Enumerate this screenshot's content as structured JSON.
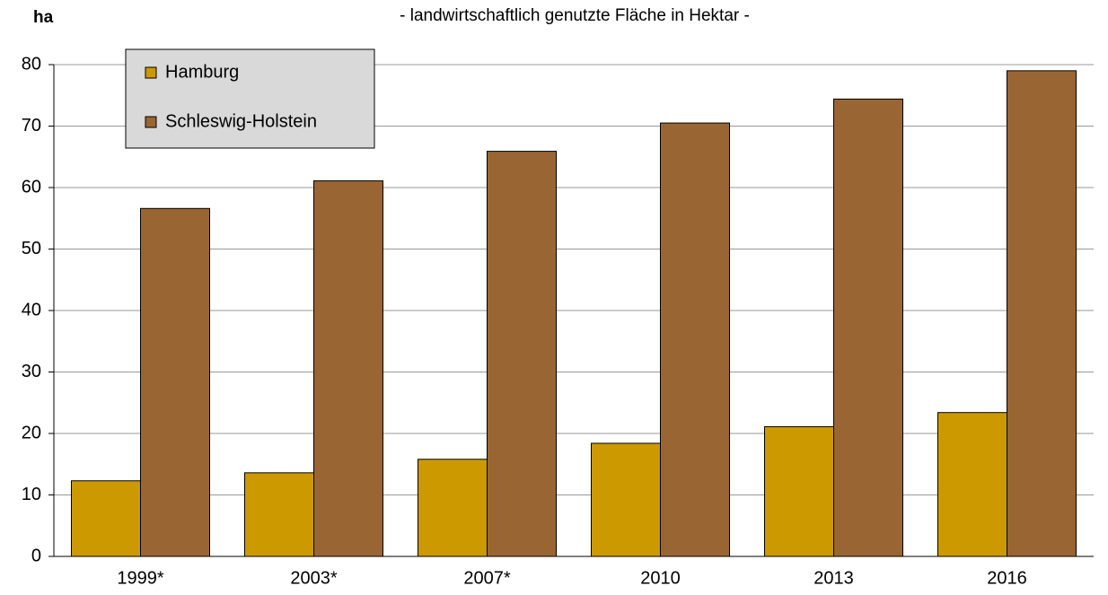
{
  "chart_data": {
    "type": "bar",
    "title": "- landwirtschaftlich genutzte Fläche in Hektar -",
    "ylabel": "ha",
    "categories": [
      "1999*",
      "2003*",
      "2007*",
      "2010",
      "2013",
      "2016"
    ],
    "series": [
      {
        "name": "Hamburg",
        "color": "#cc9900",
        "values": [
          12.3,
          13.6,
          15.8,
          18.4,
          21.1,
          23.4
        ]
      },
      {
        "name": "Schleswig-Holstein",
        "color": "#996633",
        "values": [
          56.6,
          61.1,
          65.9,
          70.5,
          74.4,
          79.0
        ]
      }
    ],
    "ylim": [
      0,
      80
    ],
    "yticks": [
      0,
      10,
      20,
      30,
      40,
      50,
      60,
      70,
      80
    ],
    "grid": true,
    "legend": "upper left"
  }
}
